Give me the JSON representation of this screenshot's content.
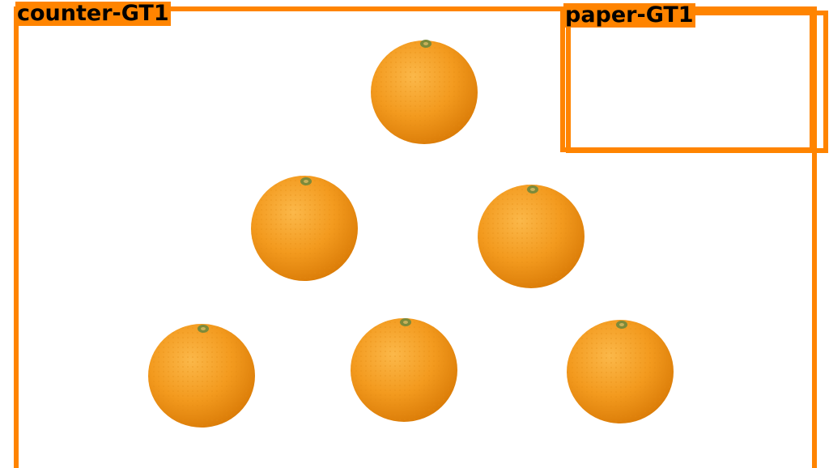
{
  "annotations": [
    {
      "label": "counter-GT1",
      "color": "#ff8400"
    },
    {
      "label": "paper-GT1",
      "color": "#ff8400"
    }
  ],
  "objects": [
    {
      "kind": "orange"
    },
    {
      "kind": "orange"
    },
    {
      "kind": "orange"
    },
    {
      "kind": "orange"
    },
    {
      "kind": "orange"
    },
    {
      "kind": "orange"
    }
  ],
  "colors": {
    "box": "#ff8400",
    "orange_peel": "#f39a1e",
    "stem": "#7c8a3a",
    "background": "#ffffff"
  }
}
